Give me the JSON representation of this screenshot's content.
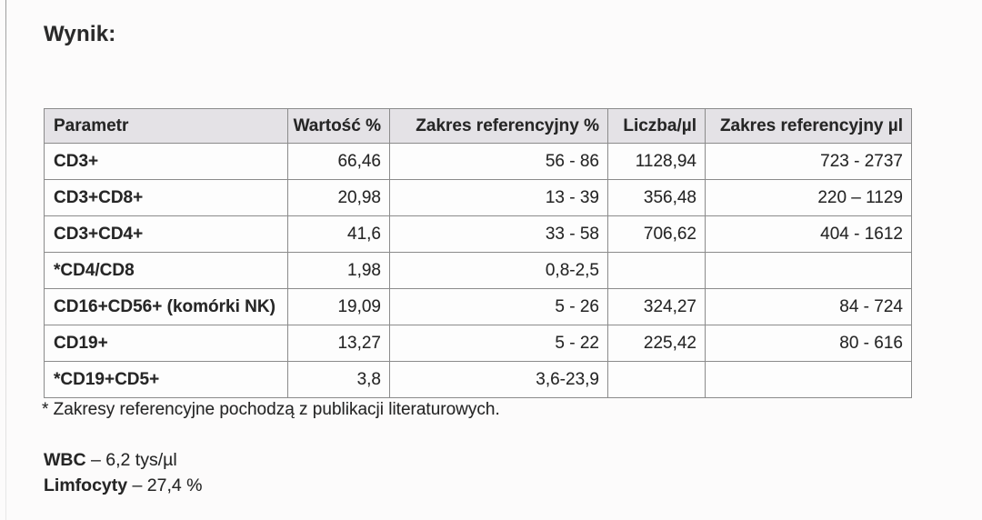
{
  "title": "Wynik:",
  "table": {
    "headers": [
      "Parametr",
      "Wartość %",
      "Zakres referencyjny %",
      "Liczba/µl",
      "Zakres referencyjny µl"
    ],
    "rows": [
      [
        "CD3+",
        "66,46",
        "56 - 86",
        "1128,94",
        "723 - 2737"
      ],
      [
        "CD3+CD8+",
        "20,98",
        "13 - 39",
        "356,48",
        "220 – 1129"
      ],
      [
        "CD3+CD4+",
        "41,6",
        "33 - 58",
        "706,62",
        "404 - 1612"
      ],
      [
        "*CD4/CD8",
        "1,98",
        "0,8-2,5",
        "",
        ""
      ],
      [
        "CD16+CD56+ (komórki NK)",
        "19,09",
        "5 - 26",
        "324,27",
        "84 - 724"
      ],
      [
        "CD19+",
        "13,27",
        "5 - 22",
        "225,42",
        "80 - 616"
      ],
      [
        "*CD19+CD5+",
        "3,8",
        "3,6-23,9",
        "",
        ""
      ]
    ]
  },
  "footnote": "* Zakresy referencyjne pochodzą z publikacji literaturowych.",
  "summary": [
    {
      "label": "WBC",
      "value": " – 6,2 tys/µl"
    },
    {
      "label": "Limfocyty",
      "value": " – 27,4 %"
    }
  ],
  "colors": {
    "header_bg": "#e4e2e6",
    "grid": "#8b8b8b",
    "text": "#262626",
    "page_bg": "#fcfbfb"
  }
}
